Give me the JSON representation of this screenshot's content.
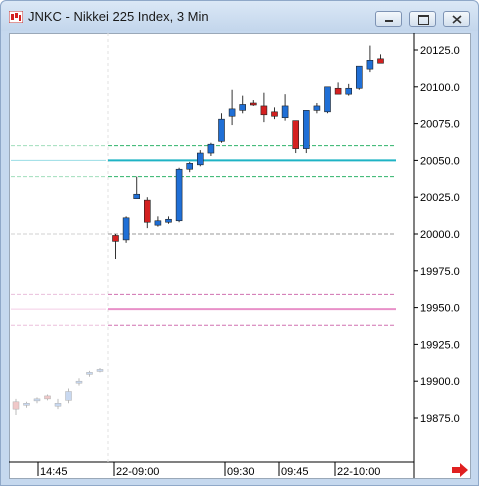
{
  "window": {
    "title": "JNKC - Nikkei 225 Index, 3 Min",
    "buttons": [
      "minimize-icon",
      "maximize-icon",
      "close-icon"
    ]
  },
  "chart_data": {
    "type": "candlestick",
    "title": "JNKC - Nikkei 225 Index, 3 Min",
    "ylim": [
      19867,
      20137
    ],
    "y_ticks": [
      20125,
      20100,
      20075,
      20050,
      20025,
      20000,
      19975,
      19950,
      19925,
      19900,
      19875
    ],
    "y_tick_labels": [
      "20125.0",
      "20100.0",
      "20075.0",
      "20050.0",
      "20025.0",
      "20000.0",
      "19975.0",
      "19950.0",
      "19925.0",
      "19900.0",
      "19875.0"
    ],
    "x_tick_labels": [
      "14:45",
      "22-09:00",
      "09:30",
      "09:45",
      "22-10:00"
    ],
    "colors": {
      "up": "#1f6fd6",
      "down": "#d42020",
      "prior_session": "#f0c8c8"
    },
    "prior_session": [
      {
        "open": 19886,
        "high": 19888,
        "low": 19877,
        "close": 19881
      },
      {
        "open": 19884,
        "high": 19886,
        "low": 19882,
        "close": 19885
      },
      {
        "open": 19887,
        "high": 19889,
        "low": 19885,
        "close": 19888
      },
      {
        "open": 19890,
        "high": 19891,
        "low": 19887,
        "close": 19888
      },
      {
        "open": 19883,
        "high": 19888,
        "low": 19881,
        "close": 19885
      },
      {
        "open": 19887,
        "high": 19895,
        "low": 19885,
        "close": 19893
      },
      {
        "open": 19899,
        "high": 19902,
        "low": 19897,
        "close": 19900
      },
      {
        "open": 19905,
        "high": 19907,
        "low": 19903,
        "close": 19906
      },
      {
        "open": 19907,
        "high": 19909,
        "low": 19906,
        "close": 19908
      }
    ],
    "candles": [
      {
        "open": 19999,
        "high": 20000,
        "low": 19983,
        "close": 19995
      },
      {
        "open": 19996,
        "high": 20012,
        "low": 19994,
        "close": 20011
      },
      {
        "open": 20024,
        "high": 20039,
        "low": 20024,
        "close": 20027
      },
      {
        "open": 20023,
        "high": 20025,
        "low": 20004,
        "close": 20008
      },
      {
        "open": 20006,
        "high": 20012,
        "low": 20005,
        "close": 20009
      },
      {
        "open": 20008,
        "high": 20012,
        "low": 20007,
        "close": 20010
      },
      {
        "open": 20009,
        "high": 20045,
        "low": 20008,
        "close": 20044
      },
      {
        "open": 20044,
        "high": 20049,
        "low": 20042,
        "close": 20048
      },
      {
        "open": 20047,
        "high": 20057,
        "low": 20046,
        "close": 20055
      },
      {
        "open": 20055,
        "high": 20062,
        "low": 20053,
        "close": 20061
      },
      {
        "open": 20063,
        "high": 20082,
        "low": 20062,
        "close": 20078
      },
      {
        "open": 20080,
        "high": 20098,
        "low": 20074,
        "close": 20085
      },
      {
        "open": 20084,
        "high": 20094,
        "low": 20082,
        "close": 20088
      },
      {
        "open": 20089,
        "high": 20091,
        "low": 20087,
        "close": 20088
      },
      {
        "open": 20087,
        "high": 20096,
        "low": 20076,
        "close": 20081
      },
      {
        "open": 20083,
        "high": 20086,
        "low": 20078,
        "close": 20080
      },
      {
        "open": 20079,
        "high": 20095,
        "low": 20077,
        "close": 20087
      },
      {
        "open": 20077,
        "high": 20077,
        "low": 20055,
        "close": 20058
      },
      {
        "open": 20058,
        "high": 20084,
        "low": 20055,
        "close": 20084
      },
      {
        "open": 20084,
        "high": 20089,
        "low": 20082,
        "close": 20087
      },
      {
        "open": 20083,
        "high": 20100,
        "low": 20082,
        "close": 20100
      },
      {
        "open": 20099,
        "high": 20103,
        "low": 20095,
        "close": 20095
      },
      {
        "open": 20095,
        "high": 20102,
        "low": 20094,
        "close": 20099
      },
      {
        "open": 20099,
        "high": 20114,
        "low": 20098,
        "close": 20114
      },
      {
        "open": 20112,
        "high": 20128,
        "low": 20110,
        "close": 20118
      },
      {
        "open": 20119,
        "high": 20122,
        "low": 20116,
        "close": 20116
      }
    ],
    "levels": [
      {
        "value": 20060,
        "color": "#2fb36a",
        "style": "dashed",
        "width": 1
      },
      {
        "value": 20050,
        "color": "#1eb3c4",
        "style": "solid",
        "width": 2
      },
      {
        "value": 20039,
        "color": "#2fb36a",
        "style": "dashed",
        "width": 1
      },
      {
        "value": 20000,
        "color": "#9a9a9a",
        "style": "dashed",
        "width": 1
      },
      {
        "value": 19959,
        "color": "#d070b0",
        "style": "dashed",
        "width": 1
      },
      {
        "value": 19949,
        "color": "#e890c8",
        "style": "solid",
        "width": 2
      },
      {
        "value": 19938,
        "color": "#d070b0",
        "style": "dashed",
        "width": 1
      }
    ]
  }
}
